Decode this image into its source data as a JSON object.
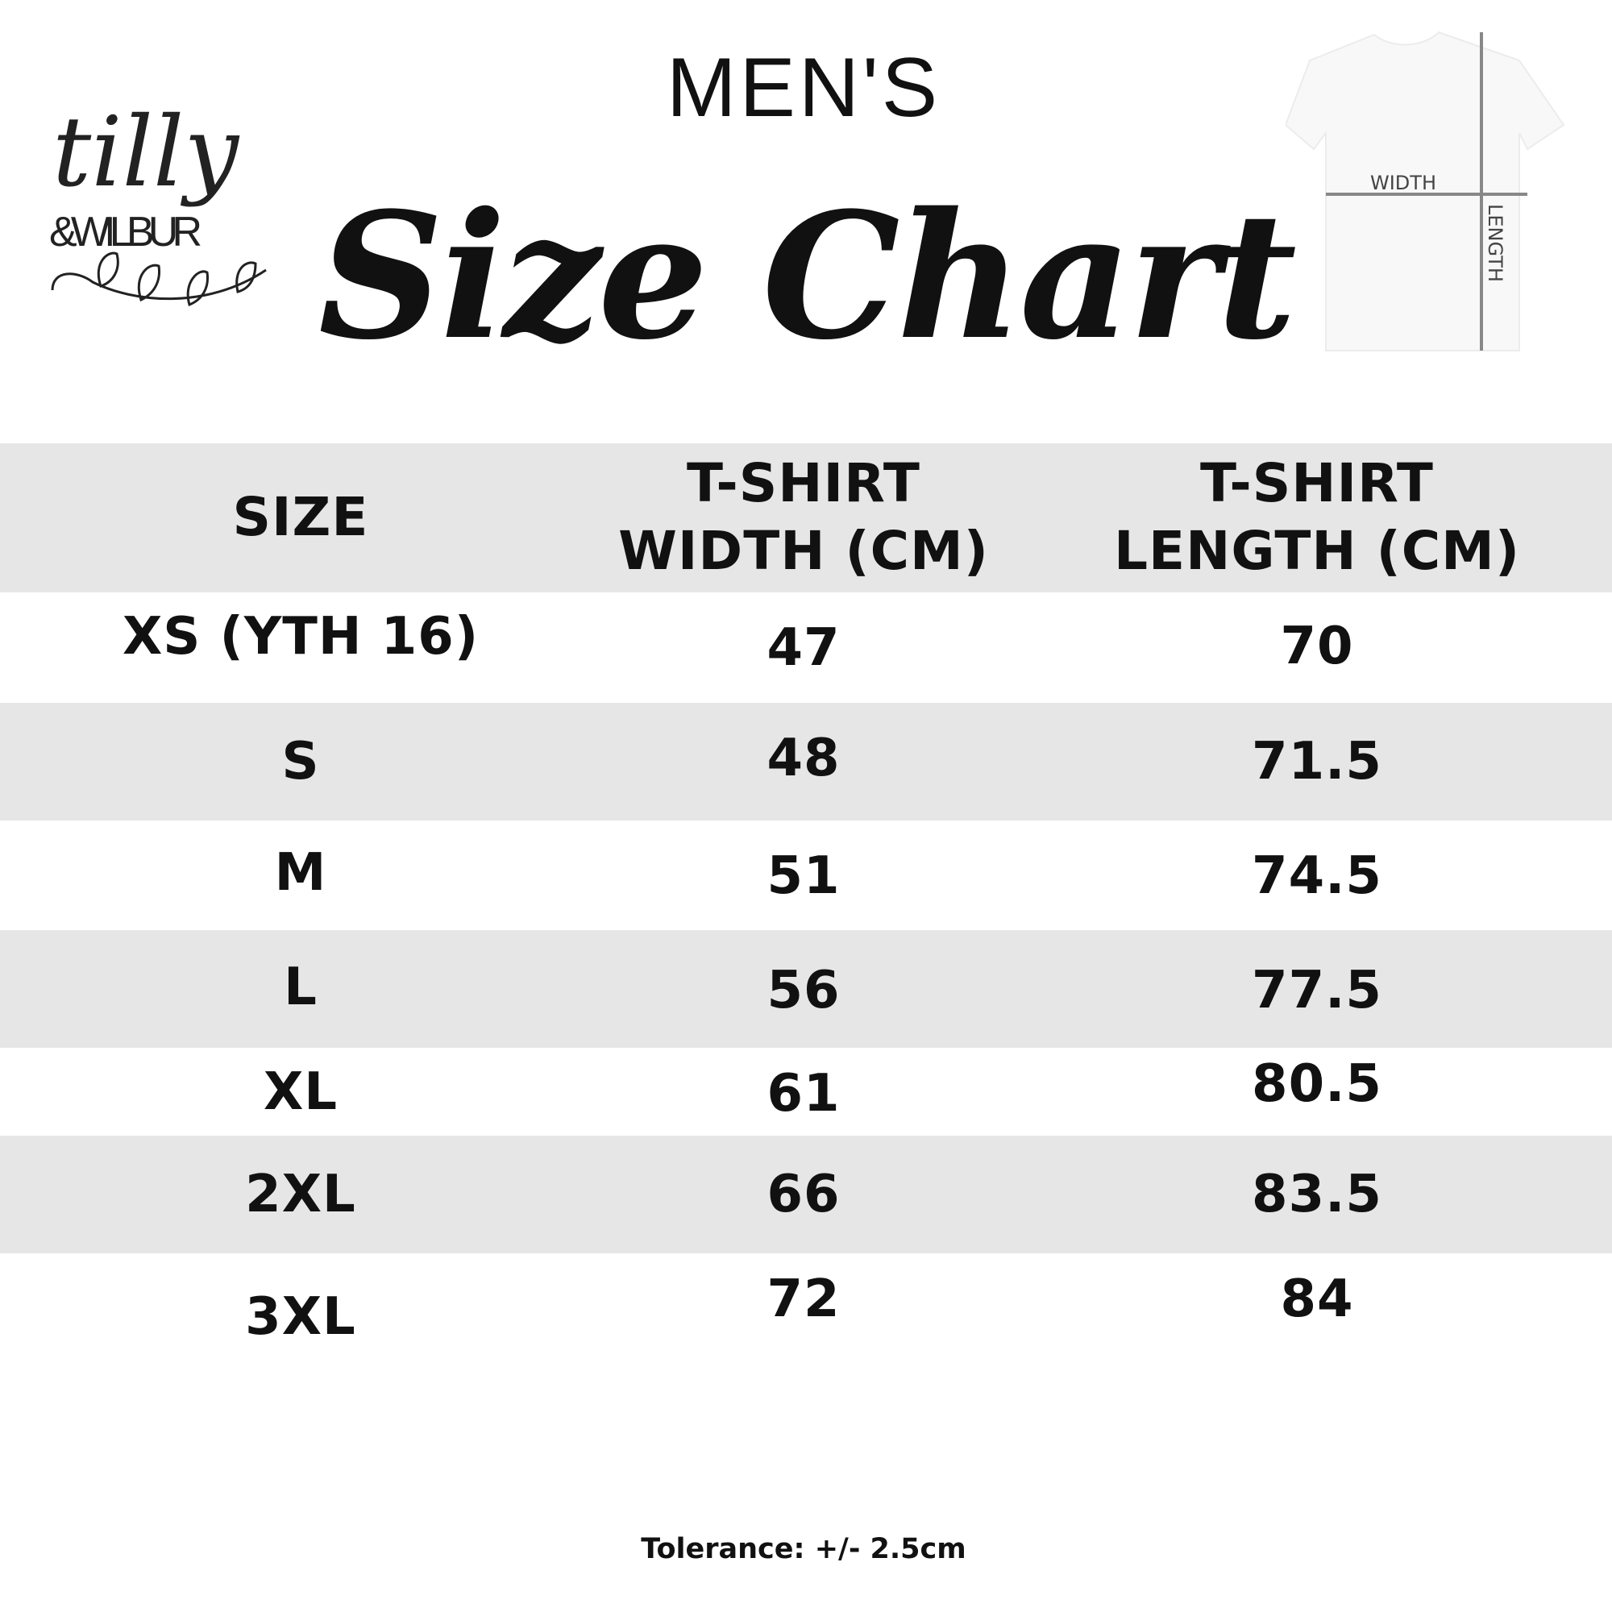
{
  "brand": {
    "logo_text_main": "tilly",
    "logo_text_sub": "&WILBUR"
  },
  "header": {
    "subtitle": "MEN'S",
    "title": "Size Chart"
  },
  "diagram": {
    "width_label": "WIDTH",
    "length_label": "LENGTH"
  },
  "table": {
    "columns": [
      "SIZE",
      "T-SHIRT WIDTH (CM)",
      "T-SHIRT LENGTH (CM)"
    ],
    "column_lines": [
      [
        "SIZE"
      ],
      [
        "T-SHIRT",
        "WIDTH (CM)"
      ],
      [
        "T-SHIRT",
        "LENGTH (CM)"
      ]
    ],
    "rows": [
      {
        "size": "XS (YTH 16)",
        "width": "47",
        "length": "70"
      },
      {
        "size": "S",
        "width": "48",
        "length": "71.5"
      },
      {
        "size": "M",
        "width": "51",
        "length": "74.5"
      },
      {
        "size": "L",
        "width": "56",
        "length": "77.5"
      },
      {
        "size": "XL",
        "width": "61",
        "length": "80.5"
      },
      {
        "size": "2XL",
        "width": "66",
        "length": "83.5"
      },
      {
        "size": "3XL",
        "width": "72",
        "length": "84"
      }
    ],
    "stripe_color": "#e6e6e6"
  },
  "footer": {
    "tolerance": "Tolerance: +/- 2.5cm"
  }
}
